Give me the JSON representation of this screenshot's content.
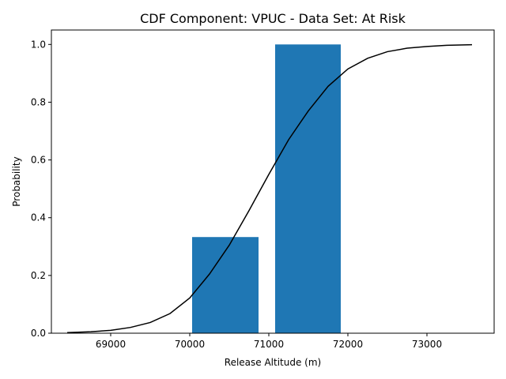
{
  "chart_data": {
    "type": "bar",
    "title": "CDF Component: VPUC - Data Set: At Risk",
    "xlabel": "Release Altitude (m)",
    "ylabel": "Probability",
    "xlim": [
      68250,
      73850
    ],
    "ylim": [
      0,
      1.05
    ],
    "xticks": [
      69000,
      70000,
      71000,
      72000,
      73000
    ],
    "yticks": [
      0.0,
      0.2,
      0.4,
      0.6,
      0.8,
      1.0
    ],
    "grid": false,
    "bars": [
      {
        "x_start": 70030,
        "x_end": 70870,
        "value": 0.333
      },
      {
        "x_start": 71080,
        "x_end": 71910,
        "value": 1.0
      }
    ],
    "bar_color": "#1f77b4",
    "curve": {
      "type": "line",
      "color": "#000000",
      "x": [
        68450,
        68750,
        69000,
        69250,
        69500,
        69750,
        70000,
        70250,
        70500,
        70750,
        71000,
        71250,
        71500,
        71750,
        72000,
        72250,
        72500,
        72750,
        73000,
        73250,
        73570
      ],
      "y": [
        0.002,
        0.005,
        0.01,
        0.02,
        0.037,
        0.068,
        0.122,
        0.205,
        0.305,
        0.425,
        0.55,
        0.67,
        0.77,
        0.855,
        0.915,
        0.952,
        0.975,
        0.987,
        0.993,
        0.997,
        0.999
      ]
    }
  }
}
